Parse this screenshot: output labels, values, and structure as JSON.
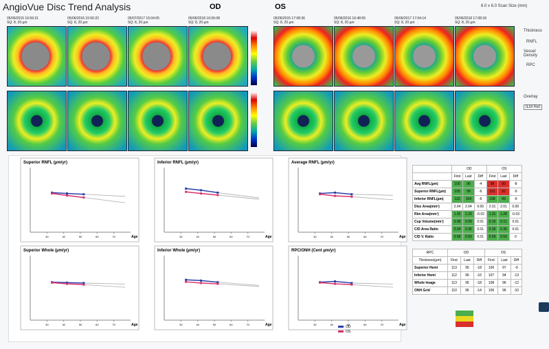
{
  "header": {
    "title": "AngioVue Disc Trend Analysis",
    "od": "OD",
    "os": "OS",
    "scan_size": "6.0 x 6.0 Scan Size (mm)"
  },
  "scans": [
    {
      "date": "05/06/2015 16:59:31",
      "info": "SQ: 8, 20 µm"
    },
    {
      "date": "05/06/2016 15:50:22",
      "info": "SQ: 8, 20 µm"
    },
    {
      "date": "05/07/2017 16:04:05",
      "info": "SQ: 8, 20 µm"
    },
    {
      "date": "05/06/2018 16:06:08",
      "info": "SQ: 8, 20 µm"
    },
    {
      "date": "05/06/2015 17:08:36",
      "info": "SQ: 8, 20 µm"
    },
    {
      "date": "05/06/2016 16:48:55",
      "info": "SQ: 8, 20 µm"
    },
    {
      "date": "05/06/2017 17:04:14",
      "info": "SQ: 8, 20 µm"
    },
    {
      "date": "05/06/2018 17:08:18",
      "info": "SQ: 8, 20 µm"
    }
  ],
  "side_panel": {
    "thickness": "Thickness",
    "rnfl": "RNFL",
    "vessel_density": "Vessel Density",
    "rpc": "RPC",
    "overlay": "Overlay",
    "ref": "ILM Ref"
  },
  "plots": [
    {
      "title": "Superior RNFL (µm/yr)",
      "x_label": "Age",
      "xlim": [
        20,
        80
      ],
      "ylim": [
        0,
        160
      ],
      "xticks": [
        30,
        40,
        50,
        60,
        70
      ],
      "series": [
        {
          "name": "OD",
          "color": "#2b3ea8",
          "x": [
            33,
            42,
            52
          ],
          "values": [
            98,
            96,
            94
          ]
        },
        {
          "name": "OS",
          "color": "#d6336c",
          "x": [
            33,
            42,
            52
          ],
          "values": [
            96,
            91,
            86
          ]
        }
      ]
    },
    {
      "title": "Inferior RNFL (µm/yr)",
      "x_label": "Age",
      "xlim": [
        20,
        80
      ],
      "ylim": [
        0,
        160
      ],
      "xticks": [
        30,
        40,
        50,
        60,
        70
      ],
      "series": [
        {
          "name": "OD",
          "color": "#2b3ea8",
          "x": [
            33,
            42,
            52
          ],
          "values": [
            108,
            104,
            98
          ]
        },
        {
          "name": "OS",
          "color": "#d6336c",
          "x": [
            33,
            42,
            52
          ],
          "values": [
            100,
            96,
            92
          ]
        }
      ]
    },
    {
      "title": "Average RNFL (µm/yr)",
      "x_label": "Age",
      "xlim": [
        20,
        80
      ],
      "ylim": [
        0,
        160
      ],
      "xticks": [
        30,
        40,
        50,
        60,
        70
      ],
      "series": [
        {
          "name": "OD",
          "color": "#2b3ea8",
          "x": [
            33,
            42,
            52
          ],
          "values": [
            96,
            98,
            94
          ]
        },
        {
          "name": "OS",
          "color": "#d6336c",
          "x": [
            33,
            42,
            52
          ],
          "values": [
            94,
            90,
            88
          ]
        }
      ]
    },
    {
      "title": "Superior Whole (µm/yr)",
      "x_label": "Age",
      "xlim": [
        20,
        80
      ],
      "ylim": [
        0,
        160
      ],
      "xticks": [
        30,
        40,
        50,
        60,
        70
      ],
      "series": [
        {
          "name": "OD",
          "color": "#2b3ea8",
          "x": [
            33,
            42,
            52
          ],
          "values": [
            94,
            93,
            92
          ]
        },
        {
          "name": "OS",
          "color": "#d6336c",
          "x": [
            33,
            42,
            52
          ],
          "values": [
            93,
            90,
            88
          ]
        }
      ]
    },
    {
      "title": "Inferior Whole (µm/yr)",
      "x_label": "Age",
      "xlim": [
        20,
        80
      ],
      "ylim": [
        0,
        160
      ],
      "xticks": [
        30,
        40,
        50,
        60,
        70
      ],
      "series": [
        {
          "name": "OD",
          "color": "#2b3ea8",
          "x": [
            33,
            42,
            52
          ],
          "values": [
            100,
            98,
            94
          ]
        },
        {
          "name": "OS",
          "color": "#d6336c",
          "x": [
            33,
            42,
            52
          ],
          "values": [
            95,
            92,
            90
          ]
        }
      ]
    },
    {
      "title": "RPC/ONH (Cent µm/yr)",
      "x_label": "Age",
      "xlim": [
        20,
        80
      ],
      "ylim": [
        0,
        160
      ],
      "xticks": [
        30,
        40,
        50,
        60,
        70
      ],
      "series": [
        {
          "name": "OD",
          "color": "#2b3ea8",
          "x": [
            33,
            42,
            52
          ],
          "values": [
            94,
            96,
            92
          ]
        },
        {
          "name": "OS",
          "color": "#d6336c",
          "x": [
            33,
            42,
            52
          ],
          "values": [
            93,
            90,
            88
          ]
        }
      ]
    }
  ],
  "plot_legend": [
    "OD",
    "OS"
  ],
  "table1": {
    "groups": [
      "OD",
      "OS"
    ],
    "columns": [
      "First",
      "Last",
      "Diff",
      "First",
      "Last",
      "Diff"
    ],
    "rows": [
      {
        "label": "Avg RNFL(µm)",
        "cells": [
          "100",
          "96",
          "-4",
          "98",
          "90",
          "-8"
        ],
        "fills": [
          "#4cae4c",
          "#4cae4c",
          null,
          "#d9302c",
          "#d9302c",
          null
        ]
      },
      {
        "label": "Superior RNFL(µm)",
        "cells": [
          "105",
          "99",
          "-6",
          "101",
          "92",
          "-9"
        ],
        "fills": [
          "#4cae4c",
          "#4cae4c",
          null,
          "#d9302c",
          "#d9302c",
          null
        ]
      },
      {
        "label": "Inferior RNFL(µm)",
        "cells": [
          "110",
          "104",
          "-6",
          "108",
          "99",
          "-9"
        ],
        "fills": [
          "#4cae4c",
          "#4cae4c",
          null,
          "#4cae4c",
          "#4cae4c",
          null
        ]
      },
      {
        "label": "Disc Area(mm²)",
        "cells": [
          "2.04",
          "2.04",
          "0.00",
          "2.01",
          "2.01",
          "0.00"
        ],
        "fills": [
          null,
          null,
          null,
          null,
          null,
          null
        ]
      },
      {
        "label": "Rim Area(mm²)",
        "cells": [
          "1.35",
          "1.33",
          "-0.02",
          "1.31",
          "1.28",
          "-0.03"
        ],
        "fills": [
          "#4cae4c",
          "#4cae4c",
          null,
          "#4cae4c",
          "#4cae4c",
          null
        ]
      },
      {
        "label": "Cup Volume(mm³)",
        "cells": [
          "0.08",
          "0.09",
          "0.01",
          "0.10",
          "0.11",
          "0.01"
        ],
        "fills": [
          "#4cae4c",
          "#4cae4c",
          null,
          "#4cae4c",
          "#4cae4c",
          null
        ]
      },
      {
        "label": "C/D Area Ratio",
        "cells": [
          "0.34",
          "0.35",
          "0.01",
          "0.35",
          "0.36",
          "0.01"
        ],
        "fills": [
          "#4cae4c",
          "#4cae4c",
          null,
          "#4cae4c",
          "#4cae4c",
          null
        ]
      },
      {
        "label": "C/D V. Ratio",
        "cells": [
          "0.58",
          "0.59",
          "0.01",
          "0.59",
          "0.59",
          "0"
        ],
        "fills": [
          "#4cae4c",
          "#4cae4c",
          null,
          "#4cae4c",
          "#4cae4c",
          null
        ]
      }
    ]
  },
  "table2": {
    "title": "RPC",
    "groups": [
      "OD",
      "OS"
    ],
    "columns": [
      "Thickness(µm)",
      "First",
      "Last",
      "Diff",
      "First",
      "Last",
      "Diff"
    ],
    "rows": [
      [
        "Superior Hemi",
        "113",
        "95",
        "-18",
        "106",
        "97",
        "-9"
      ],
      [
        "Inferior Hemi",
        "112",
        "96",
        "-16",
        "107",
        "94",
        "-13"
      ],
      [
        "Whole Image",
        "113",
        "95",
        "-18",
        "108",
        "96",
        "-12"
      ],
      [
        "ONH Grid",
        "110",
        "96",
        "-14",
        "106",
        "96",
        "-10"
      ]
    ]
  }
}
